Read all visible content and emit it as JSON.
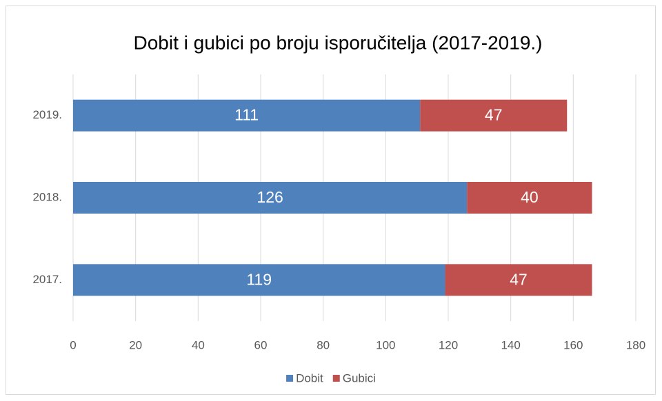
{
  "chart_data": {
    "type": "stacked_bar_horizontal",
    "title": "Dobit i gubici po broju isporučitelja (2017-2019.)",
    "categories": [
      "2017.",
      "2018.",
      "2019."
    ],
    "series": [
      {
        "name": "Dobit",
        "color": "#4f81bd",
        "values": [
          119,
          126,
          111
        ]
      },
      {
        "name": "Gubici",
        "color": "#c0504d",
        "values": [
          47,
          40,
          47
        ]
      }
    ],
    "xlim": [
      0,
      180
    ],
    "xticks": [
      0,
      20,
      40,
      60,
      80,
      100,
      120,
      140,
      160,
      180
    ],
    "grid": true,
    "legend": "bottom"
  }
}
